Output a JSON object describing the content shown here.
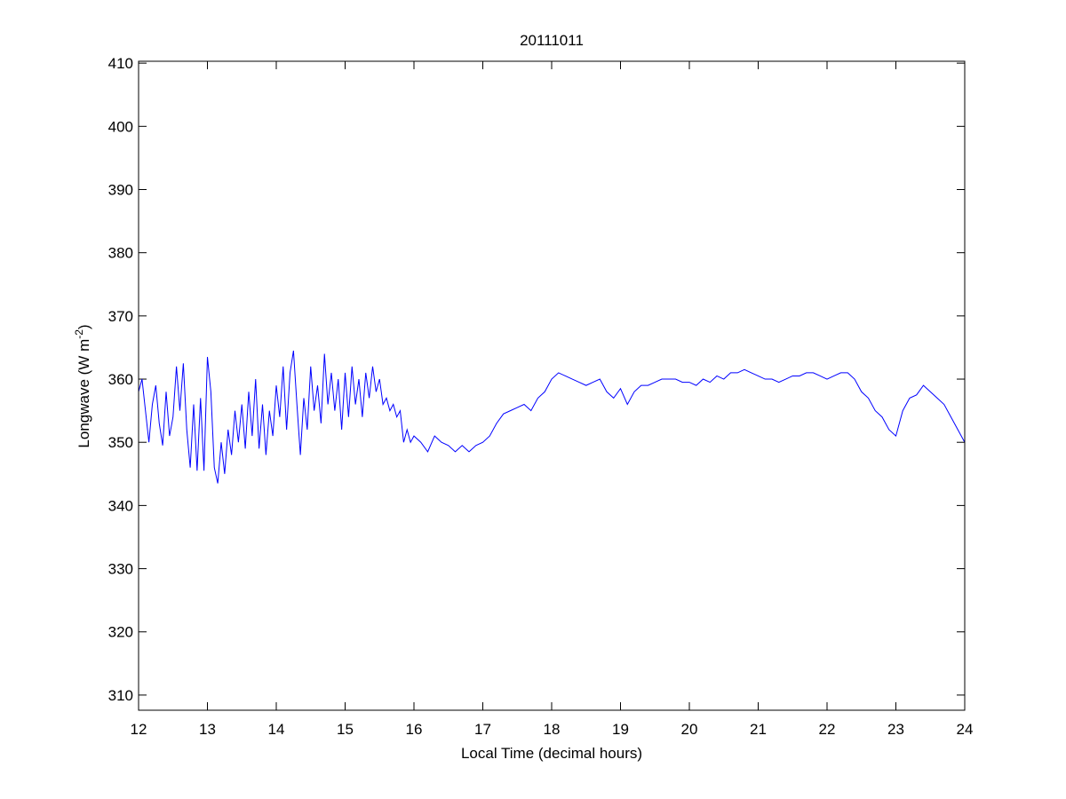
{
  "chart_data": {
    "type": "line",
    "title": "20111011",
    "xlabel": "Local Time (decimal hours)",
    "ylabel": [
      "Longwave (W m",
      "-2",
      ")"
    ],
    "xlim": [
      12,
      24
    ],
    "ylim": [
      307.6,
      410.3
    ],
    "xticks": [
      12,
      13,
      14,
      15,
      16,
      17,
      18,
      19,
      20,
      21,
      22,
      23,
      24
    ],
    "yticks": [
      310,
      320,
      330,
      340,
      350,
      360,
      370,
      380,
      390,
      400,
      410
    ],
    "grid": false,
    "series": [
      {
        "color": "#0000ff",
        "x": [
          12.0,
          12.05,
          12.1,
          12.15,
          12.2,
          12.25,
          12.3,
          12.35,
          12.4,
          12.45,
          12.5,
          12.55,
          12.6,
          12.65,
          12.7,
          12.75,
          12.8,
          12.85,
          12.9,
          12.95,
          13.0,
          13.05,
          13.1,
          13.15,
          13.2,
          13.25,
          13.3,
          13.35,
          13.4,
          13.45,
          13.5,
          13.55,
          13.6,
          13.65,
          13.7,
          13.75,
          13.8,
          13.85,
          13.9,
          13.95,
          14.0,
          14.05,
          14.1,
          14.15,
          14.2,
          14.25,
          14.3,
          14.35,
          14.4,
          14.45,
          14.5,
          14.55,
          14.6,
          14.65,
          14.7,
          14.75,
          14.8,
          14.85,
          14.9,
          14.95,
          15.0,
          15.05,
          15.1,
          15.15,
          15.2,
          15.25,
          15.3,
          15.35,
          15.4,
          15.45,
          15.5,
          15.55,
          15.6,
          15.65,
          15.7,
          15.75,
          15.8,
          15.85,
          15.9,
          15.95,
          16.0,
          16.1,
          16.2,
          16.3,
          16.4,
          16.5,
          16.6,
          16.7,
          16.8,
          16.9,
          17.0,
          17.1,
          17.2,
          17.3,
          17.4,
          17.5,
          17.6,
          17.7,
          17.8,
          17.9,
          18.0,
          18.1,
          18.2,
          18.3,
          18.4,
          18.5,
          18.6,
          18.7,
          18.8,
          18.9,
          19.0,
          19.1,
          19.2,
          19.3,
          19.4,
          19.5,
          19.6,
          19.7,
          19.8,
          19.9,
          20.0,
          20.1,
          20.2,
          20.3,
          20.4,
          20.5,
          20.6,
          20.7,
          20.8,
          20.9,
          21.0,
          21.1,
          21.2,
          21.3,
          21.4,
          21.5,
          21.6,
          21.7,
          21.8,
          21.9,
          22.0,
          22.1,
          22.2,
          22.3,
          22.4,
          22.5,
          22.6,
          22.7,
          22.8,
          22.9,
          23.0,
          23.1,
          23.2,
          23.3,
          23.4,
          23.5,
          23.6,
          23.7,
          23.8,
          23.9,
          24.0
        ],
        "values": [
          358,
          360,
          355,
          350,
          356,
          359,
          353,
          349.5,
          358,
          351,
          354,
          362,
          355,
          362.5,
          352,
          346,
          356,
          345.5,
          357,
          345.5,
          363.5,
          358,
          346,
          343.5,
          350,
          345,
          352,
          348,
          355,
          350,
          356,
          349,
          358,
          351,
          360,
          349,
          356,
          348,
          355,
          351,
          359,
          354,
          362,
          352,
          361,
          364.5,
          356,
          348,
          357,
          352,
          362,
          355,
          359,
          353,
          364,
          356,
          361,
          355,
          360,
          352,
          361,
          354,
          362,
          356,
          360,
          354,
          361,
          357,
          362,
          358,
          360,
          356,
          357,
          355,
          356,
          354,
          355,
          350,
          352,
          350,
          351,
          350,
          348.5,
          351,
          350,
          349.5,
          348.5,
          349.5,
          348.5,
          349.5,
          350,
          351,
          353,
          354.5,
          355,
          355.5,
          356,
          355,
          357,
          358,
          360,
          361,
          360.5,
          360,
          359.5,
          359,
          359.5,
          360,
          358,
          357,
          358.5,
          356,
          358,
          359,
          359,
          359.5,
          360,
          360,
          360,
          359.5,
          359.5,
          359,
          360,
          359.5,
          360.5,
          360,
          361,
          361,
          361.5,
          361,
          360.5,
          360,
          360,
          359.5,
          360,
          360.5,
          360.5,
          361,
          361,
          360.5,
          360,
          360.5,
          361,
          361,
          360,
          358,
          357,
          355,
          354,
          352,
          351,
          355,
          357,
          357.5,
          359,
          358,
          357,
          356,
          354,
          352,
          350
        ]
      }
    ]
  }
}
